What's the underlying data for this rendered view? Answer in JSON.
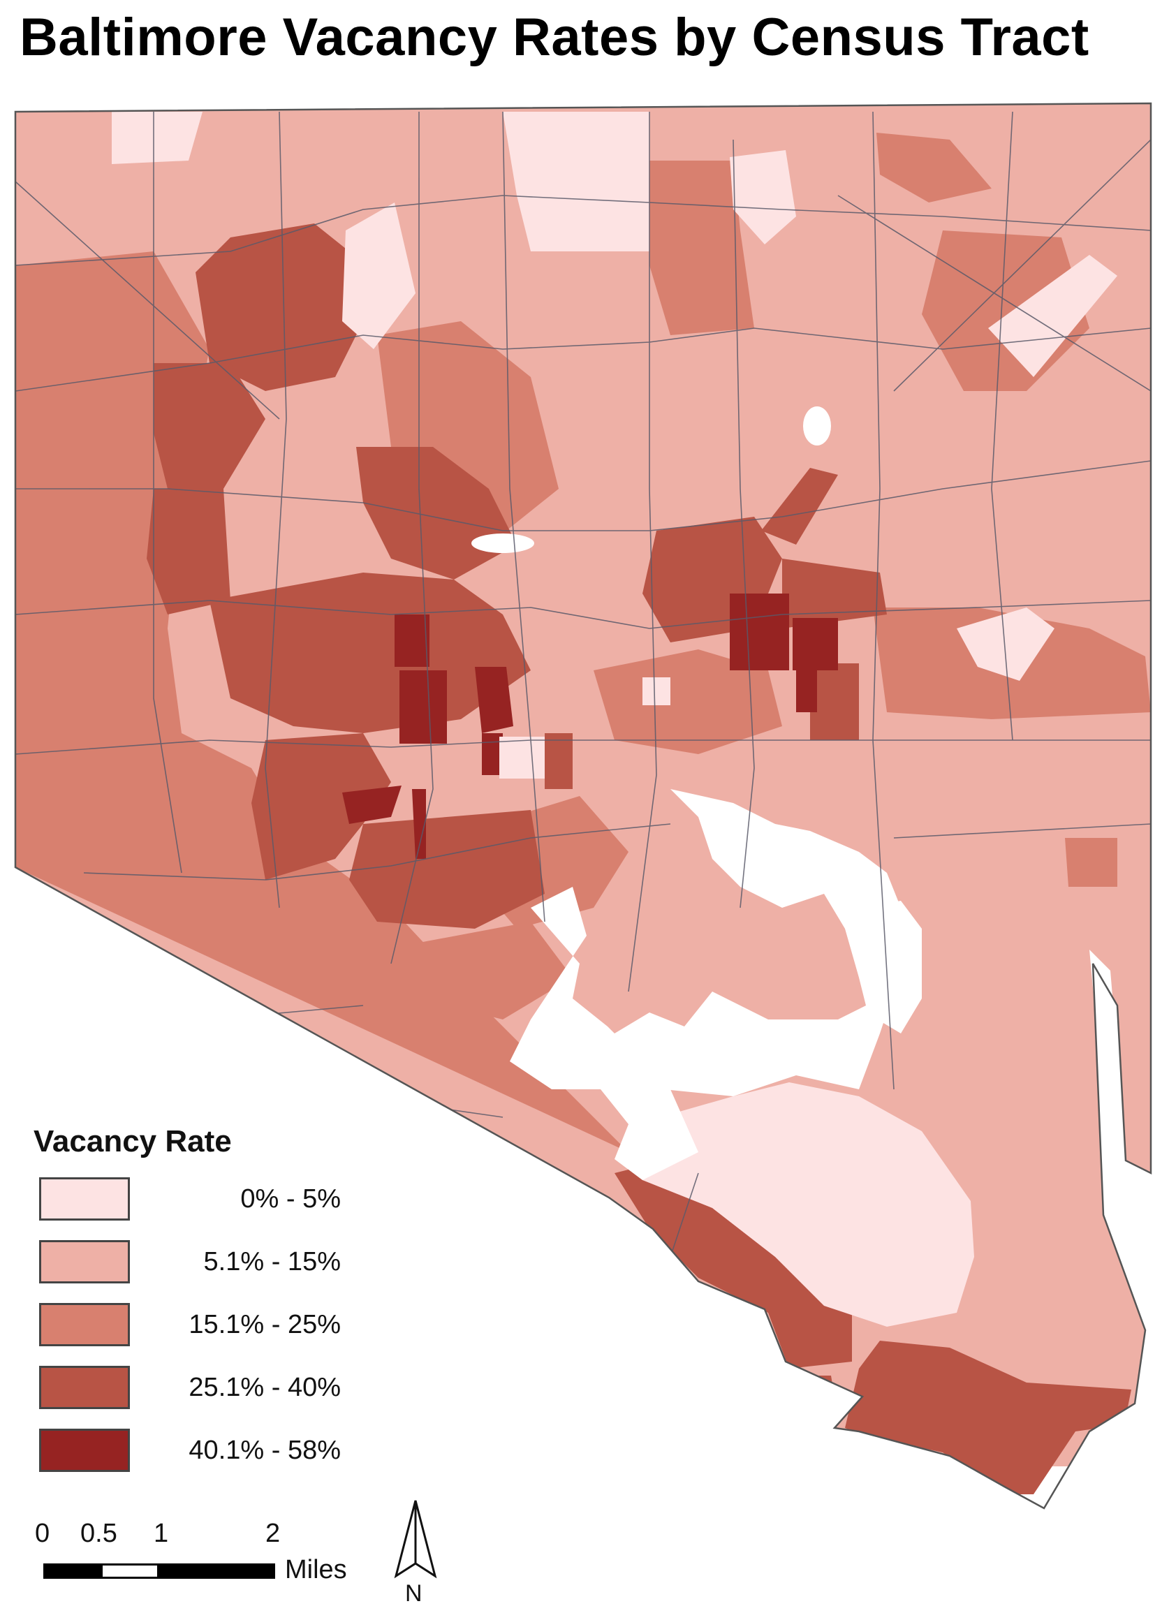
{
  "title": "Baltimore Vacancy Rates by Census Tract",
  "legend": {
    "title": "Vacancy Rate",
    "classes": [
      {
        "label": "0%   - 5%",
        "color": "#fde3e3"
      },
      {
        "label": "5.1% - 15%",
        "color": "#eeb0a6"
      },
      {
        "label": "15.1% - 25%",
        "color": "#d8806f"
      },
      {
        "label": "25.1% - 40%",
        "color": "#b85445"
      },
      {
        "label": "40.1% - 58%",
        "color": "#962322"
      }
    ]
  },
  "scalebar": {
    "ticks": [
      "0",
      "0.5",
      "1",
      "2"
    ],
    "unit": "Miles"
  },
  "north_arrow": {
    "label": "N"
  },
  "colors": {
    "water": "#ffffff",
    "tract_border": "#5a5a6a",
    "city_outline": "#555555"
  }
}
